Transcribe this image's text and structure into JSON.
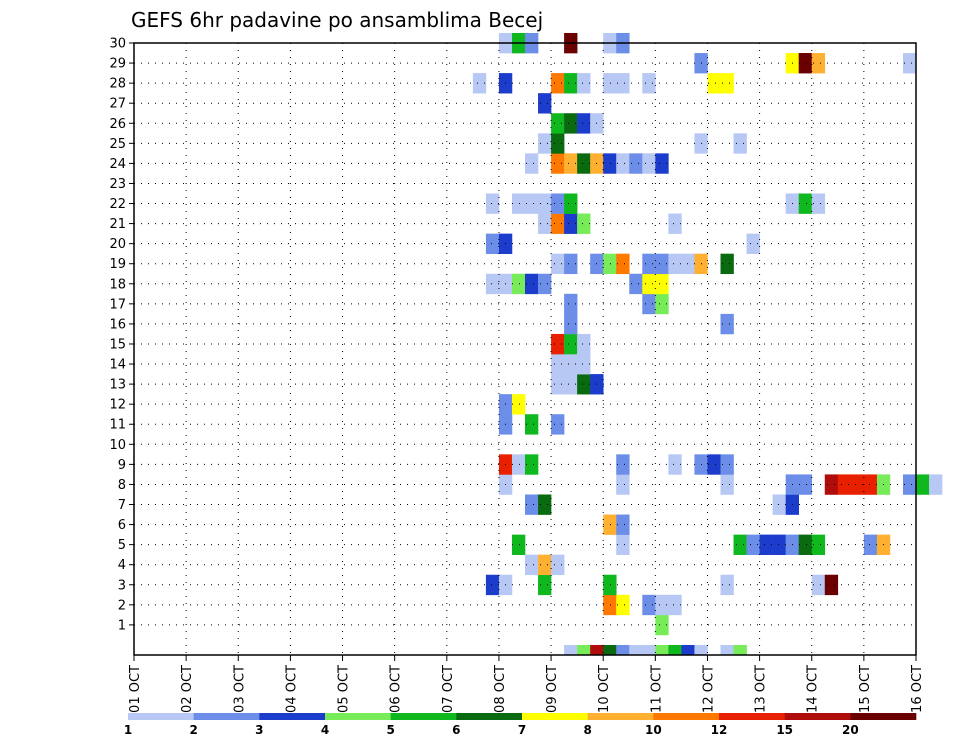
{
  "chart_data": {
    "type": "heatmap",
    "title": "GEFS 6hr padavine po ansamblima Becej",
    "xlabel": "",
    "ylabel": "",
    "x_ticks": [
      "01 OCT",
      "02 OCT",
      "03 OCT",
      "04 OCT",
      "05 OCT",
      "06 OCT",
      "07 OCT",
      "08 OCT",
      "09 OCT",
      "10 OCT",
      "11 OCT",
      "12 OCT",
      "13 OCT",
      "14 OCT",
      "15 OCT",
      "16 OCT"
    ],
    "x_range": [
      "01 OCT 00Z",
      "16 OCT 00Z"
    ],
    "step_hours": 6,
    "y_ticks": [
      1,
      2,
      3,
      4,
      5,
      6,
      7,
      8,
      9,
      10,
      11,
      12,
      13,
      14,
      15,
      16,
      17,
      18,
      19,
      20,
      21,
      22,
      23,
      24,
      25,
      26,
      27,
      28,
      29,
      30
    ],
    "y_range": [
      0,
      30
    ],
    "grid": "dotted",
    "colorbar": {
      "placement": "bottom",
      "labels": [
        "1",
        "2",
        "3",
        "4",
        "5",
        "6",
        "7",
        "8",
        "10",
        "12",
        "15",
        "20"
      ],
      "colors": [
        "#b8c8f4",
        "#6c8ee8",
        "#1c3ccc",
        "#78ec58",
        "#10b820",
        "#0a6a10",
        "#ffff00",
        "#ffb030",
        "#ff7800",
        "#e82000",
        "#b00c0c",
        "#6a0000"
      ]
    },
    "cells": [
      {
        "member": 0,
        "step": 33,
        "level": 1
      },
      {
        "member": 0,
        "step": 34,
        "level": 4
      },
      {
        "member": 0,
        "step": 35,
        "level": 11
      },
      {
        "member": 0,
        "step": 36,
        "level": 6
      },
      {
        "member": 0,
        "step": 37,
        "level": 2
      },
      {
        "member": 0,
        "step": 38,
        "level": 1
      },
      {
        "member": 0,
        "step": 39,
        "level": 1
      },
      {
        "member": 0,
        "step": 40,
        "level": 4
      },
      {
        "member": 0,
        "step": 41,
        "level": 5
      },
      {
        "member": 0,
        "step": 42,
        "level": 3
      },
      {
        "member": 0,
        "step": 43,
        "level": 1
      },
      {
        "member": 0,
        "step": 45,
        "level": 1
      },
      {
        "member": 0,
        "step": 46,
        "level": 4
      },
      {
        "member": 1,
        "step": 40,
        "level": 4
      },
      {
        "member": 2,
        "step": 36,
        "level": 9
      },
      {
        "member": 2,
        "step": 37,
        "level": 7
      },
      {
        "member": 2,
        "step": 39,
        "level": 2
      },
      {
        "member": 2,
        "step": 40,
        "level": 1
      },
      {
        "member": 2,
        "step": 41,
        "level": 1
      },
      {
        "member": 3,
        "step": 27,
        "level": 3
      },
      {
        "member": 3,
        "step": 28,
        "level": 1
      },
      {
        "member": 3,
        "step": 31,
        "level": 5
      },
      {
        "member": 3,
        "step": 36,
        "level": 5
      },
      {
        "member": 3,
        "step": 45,
        "level": 1
      },
      {
        "member": 3,
        "step": 52,
        "level": 1
      },
      {
        "member": 3,
        "step": 53,
        "level": 12
      },
      {
        "member": 4,
        "step": 30,
        "level": 1
      },
      {
        "member": 4,
        "step": 31,
        "level": 8
      },
      {
        "member": 4,
        "step": 32,
        "level": 1
      },
      {
        "member": 5,
        "step": 29,
        "level": 5
      },
      {
        "member": 5,
        "step": 37,
        "level": 1
      },
      {
        "member": 5,
        "step": 46,
        "level": 5
      },
      {
        "member": 5,
        "step": 47,
        "level": 2
      },
      {
        "member": 5,
        "step": 48,
        "level": 3
      },
      {
        "member": 5,
        "step": 49,
        "level": 3
      },
      {
        "member": 5,
        "step": 50,
        "level": 2
      },
      {
        "member": 5,
        "step": 51,
        "level": 6
      },
      {
        "member": 5,
        "step": 52,
        "level": 5
      },
      {
        "member": 5,
        "step": 56,
        "level": 2
      },
      {
        "member": 5,
        "step": 57,
        "level": 8
      },
      {
        "member": 6,
        "step": 36,
        "level": 8
      },
      {
        "member": 6,
        "step": 37,
        "level": 2
      },
      {
        "member": 7,
        "step": 30,
        "level": 2
      },
      {
        "member": 7,
        "step": 31,
        "level": 6
      },
      {
        "member": 7,
        "step": 49,
        "level": 1
      },
      {
        "member": 7,
        "step": 50,
        "level": 3
      },
      {
        "member": 8,
        "step": 28,
        "level": 1
      },
      {
        "member": 8,
        "step": 37,
        "level": 1
      },
      {
        "member": 8,
        "step": 45,
        "level": 1
      },
      {
        "member": 8,
        "step": 50,
        "level": 2
      },
      {
        "member": 8,
        "step": 51,
        "level": 2
      },
      {
        "member": 8,
        "step": 53,
        "level": 11
      },
      {
        "member": 8,
        "step": 54,
        "level": 10
      },
      {
        "member": 8,
        "step": 55,
        "level": 10
      },
      {
        "member": 8,
        "step": 56,
        "level": 10
      },
      {
        "member": 8,
        "step": 57,
        "level": 4
      },
      {
        "member": 8,
        "step": 59,
        "level": 2
      },
      {
        "member": 8,
        "step": 60,
        "level": 5
      },
      {
        "member": 8,
        "step": 61,
        "level": 1
      },
      {
        "member": 9,
        "step": 28,
        "level": 10
      },
      {
        "member": 9,
        "step": 29,
        "level": 1
      },
      {
        "member": 9,
        "step": 30,
        "level": 5
      },
      {
        "member": 9,
        "step": 37,
        "level": 2
      },
      {
        "member": 9,
        "step": 41,
        "level": 1
      },
      {
        "member": 9,
        "step": 43,
        "level": 2
      },
      {
        "member": 9,
        "step": 44,
        "level": 3
      },
      {
        "member": 9,
        "step": 45,
        "level": 2
      },
      {
        "member": 11,
        "step": 28,
        "level": 2
      },
      {
        "member": 11,
        "step": 30,
        "level": 5
      },
      {
        "member": 11,
        "step": 32,
        "level": 2
      },
      {
        "member": 12,
        "step": 28,
        "level": 2
      },
      {
        "member": 12,
        "step": 29,
        "level": 7
      },
      {
        "member": 13,
        "step": 32,
        "level": 1
      },
      {
        "member": 13,
        "step": 33,
        "level": 1
      },
      {
        "member": 13,
        "step": 34,
        "level": 6
      },
      {
        "member": 13,
        "step": 35,
        "level": 3
      },
      {
        "member": 14,
        "step": 32,
        "level": 1
      },
      {
        "member": 14,
        "step": 33,
        "level": 1
      },
      {
        "member": 14,
        "step": 34,
        "level": 1
      },
      {
        "member": 15,
        "step": 32,
        "level": 10
      },
      {
        "member": 15,
        "step": 33,
        "level": 5
      },
      {
        "member": 15,
        "step": 34,
        "level": 1
      },
      {
        "member": 16,
        "step": 33,
        "level": 2
      },
      {
        "member": 16,
        "step": 45,
        "level": 2
      },
      {
        "member": 17,
        "step": 33,
        "level": 2
      },
      {
        "member": 17,
        "step": 39,
        "level": 2
      },
      {
        "member": 17,
        "step": 40,
        "level": 4
      },
      {
        "member": 18,
        "step": 27,
        "level": 1
      },
      {
        "member": 18,
        "step": 28,
        "level": 1
      },
      {
        "member": 18,
        "step": 29,
        "level": 4
      },
      {
        "member": 18,
        "step": 30,
        "level": 3
      },
      {
        "member": 18,
        "step": 31,
        "level": 2
      },
      {
        "member": 18,
        "step": 38,
        "level": 2
      },
      {
        "member": 18,
        "step": 39,
        "level": 7
      },
      {
        "member": 18,
        "step": 40,
        "level": 7
      },
      {
        "member": 19,
        "step": 32,
        "level": 1
      },
      {
        "member": 19,
        "step": 33,
        "level": 2
      },
      {
        "member": 19,
        "step": 35,
        "level": 2
      },
      {
        "member": 19,
        "step": 36,
        "level": 4
      },
      {
        "member": 19,
        "step": 37,
        "level": 9
      },
      {
        "member": 19,
        "step": 39,
        "level": 2
      },
      {
        "member": 19,
        "step": 40,
        "level": 2
      },
      {
        "member": 19,
        "step": 41,
        "level": 1
      },
      {
        "member": 19,
        "step": 42,
        "level": 1
      },
      {
        "member": 19,
        "step": 43,
        "level": 8
      },
      {
        "member": 19,
        "step": 45,
        "level": 6
      },
      {
        "member": 20,
        "step": 27,
        "level": 2
      },
      {
        "member": 20,
        "step": 28,
        "level": 3
      },
      {
        "member": 20,
        "step": 47,
        "level": 1
      },
      {
        "member": 21,
        "step": 31,
        "level": 1
      },
      {
        "member": 21,
        "step": 32,
        "level": 9
      },
      {
        "member": 21,
        "step": 33,
        "level": 3
      },
      {
        "member": 21,
        "step": 34,
        "level": 4
      },
      {
        "member": 21,
        "step": 41,
        "level": 1
      },
      {
        "member": 22,
        "step": 27,
        "level": 1
      },
      {
        "member": 22,
        "step": 29,
        "level": 1
      },
      {
        "member": 22,
        "step": 30,
        "level": 1
      },
      {
        "member": 22,
        "step": 31,
        "level": 1
      },
      {
        "member": 22,
        "step": 32,
        "level": 2
      },
      {
        "member": 22,
        "step": 33,
        "level": 5
      },
      {
        "member": 22,
        "step": 50,
        "level": 1
      },
      {
        "member": 22,
        "step": 51,
        "level": 5
      },
      {
        "member": 22,
        "step": 52,
        "level": 1
      },
      {
        "member": 24,
        "step": 30,
        "level": 1
      },
      {
        "member": 24,
        "step": 32,
        "level": 9
      },
      {
        "member": 24,
        "step": 33,
        "level": 8
      },
      {
        "member": 24,
        "step": 34,
        "level": 6
      },
      {
        "member": 24,
        "step": 35,
        "level": 8
      },
      {
        "member": 24,
        "step": 36,
        "level": 3
      },
      {
        "member": 24,
        "step": 37,
        "level": 1
      },
      {
        "member": 24,
        "step": 38,
        "level": 2
      },
      {
        "member": 24,
        "step": 39,
        "level": 1
      },
      {
        "member": 24,
        "step": 40,
        "level": 3
      },
      {
        "member": 25,
        "step": 31,
        "level": 1
      },
      {
        "member": 25,
        "step": 32,
        "level": 6
      },
      {
        "member": 25,
        "step": 43,
        "level": 1
      },
      {
        "member": 25,
        "step": 46,
        "level": 1
      },
      {
        "member": 26,
        "step": 32,
        "level": 5
      },
      {
        "member": 26,
        "step": 33,
        "level": 6
      },
      {
        "member": 26,
        "step": 34,
        "level": 3
      },
      {
        "member": 26,
        "step": 35,
        "level": 1
      },
      {
        "member": 27,
        "step": 31,
        "level": 3
      },
      {
        "member": 28,
        "step": 26,
        "level": 1
      },
      {
        "member": 28,
        "step": 28,
        "level": 3
      },
      {
        "member": 28,
        "step": 32,
        "level": 9
      },
      {
        "member": 28,
        "step": 33,
        "level": 5
      },
      {
        "member": 28,
        "step": 34,
        "level": 1
      },
      {
        "member": 28,
        "step": 36,
        "level": 1
      },
      {
        "member": 28,
        "step": 37,
        "level": 1
      },
      {
        "member": 28,
        "step": 39,
        "level": 1
      },
      {
        "member": 28,
        "step": 44,
        "level": 7
      },
      {
        "member": 28,
        "step": 45,
        "level": 7
      },
      {
        "member": 29,
        "step": 43,
        "level": 2
      },
      {
        "member": 29,
        "step": 50,
        "level": 7
      },
      {
        "member": 29,
        "step": 51,
        "level": 12
      },
      {
        "member": 29,
        "step": 52,
        "level": 8
      },
      {
        "member": 29,
        "step": 59,
        "level": 1
      },
      {
        "member": 30,
        "step": 28,
        "level": 1
      },
      {
        "member": 30,
        "step": 29,
        "level": 5
      },
      {
        "member": 30,
        "step": 30,
        "level": 2
      },
      {
        "member": 30,
        "step": 33,
        "level": 12
      },
      {
        "member": 30,
        "step": 36,
        "level": 1
      },
      {
        "member": 30,
        "step": 37,
        "level": 2
      }
    ]
  }
}
